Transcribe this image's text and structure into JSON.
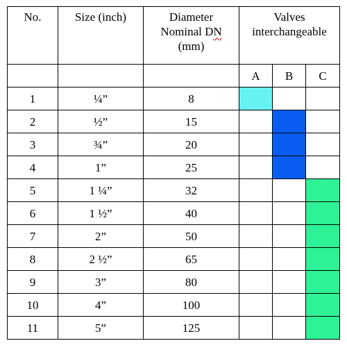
{
  "header": {
    "no": "No.",
    "size": "Size (inch)",
    "diameter_line1": "Diameter",
    "diameter_line2_prefix": "Nominal D",
    "diameter_line2_marked": "N",
    "diameter_line3": "(mm)",
    "valves_line1": "Valves",
    "valves_line2": "interchangeable",
    "groups": [
      "A",
      "B",
      "C"
    ]
  },
  "colors": {
    "group_a": "#66f2f2",
    "group_b": "#0a5df2",
    "group_c": "#2ef296"
  },
  "rows": [
    {
      "no": "1",
      "size": "¼”",
      "dn": "8",
      "group": "A"
    },
    {
      "no": "2",
      "size": "½”",
      "dn": "15",
      "group": "B"
    },
    {
      "no": "3",
      "size": "¾”",
      "dn": "20",
      "group": "B"
    },
    {
      "no": "4",
      "size": "1”",
      "dn": "25",
      "group": "B"
    },
    {
      "no": "5",
      "size": "1 ¼”",
      "dn": "32",
      "group": "C"
    },
    {
      "no": "6",
      "size": "1 ½”",
      "dn": "40",
      "group": "C"
    },
    {
      "no": "7",
      "size": "2”",
      "dn": "50",
      "group": "C"
    },
    {
      "no": "8",
      "size": "2 ½”",
      "dn": "65",
      "group": "C"
    },
    {
      "no": "9",
      "size": "3”",
      "dn": "80",
      "group": "C"
    },
    {
      "no": "10",
      "size": "4”",
      "dn": "100",
      "group": "C"
    },
    {
      "no": "11",
      "size": "5”",
      "dn": "125",
      "group": "C"
    }
  ]
}
